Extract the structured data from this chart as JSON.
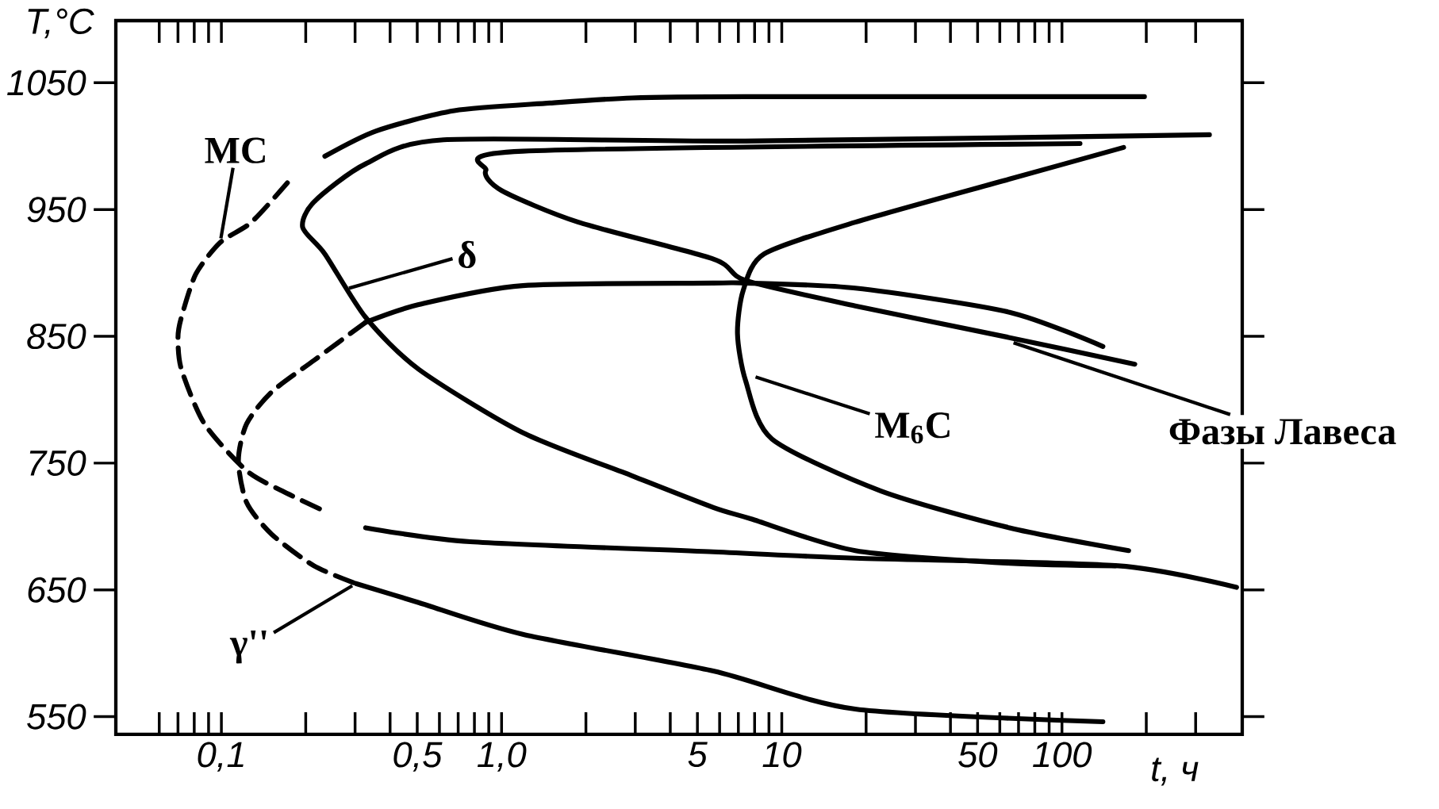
{
  "chart_data": {
    "type": "line",
    "log": "x",
    "xlabel": "t, ч",
    "ylabel": "T,°C",
    "xlim": [
      0.042,
      440
    ],
    "ylim": [
      536,
      1099
    ],
    "xticks": [
      {
        "value": 0.06,
        "label": null
      },
      {
        "value": 0.07,
        "label": null
      },
      {
        "value": 0.08,
        "label": null
      },
      {
        "value": 0.09,
        "label": null
      },
      {
        "value": 0.1,
        "label": "0,1"
      },
      {
        "value": 0.2,
        "label": null
      },
      {
        "value": 0.3,
        "label": null
      },
      {
        "value": 0.4,
        "label": null
      },
      {
        "value": 0.5,
        "label": "0,5"
      },
      {
        "value": 0.6,
        "label": null
      },
      {
        "value": 0.7,
        "label": null
      },
      {
        "value": 0.8,
        "label": null
      },
      {
        "value": 0.9,
        "label": null
      },
      {
        "value": 1.0,
        "label": "1,0"
      },
      {
        "value": 2,
        "label": null
      },
      {
        "value": 3,
        "label": null
      },
      {
        "value": 4,
        "label": null
      },
      5,
      {
        "value": 6,
        "label": null
      },
      {
        "value": 7,
        "label": null
      },
      {
        "value": 8,
        "label": null
      },
      {
        "value": 9,
        "label": null
      },
      10,
      {
        "value": 20,
        "label": null
      },
      {
        "value": 30,
        "label": null
      },
      {
        "value": 40,
        "label": null
      },
      50,
      {
        "value": 60,
        "label": null
      },
      {
        "value": 70,
        "label": null
      },
      {
        "value": 80,
        "label": null
      },
      {
        "value": 90,
        "label": null
      },
      100,
      {
        "value": 200,
        "label": null
      },
      {
        "value": 300,
        "label": null
      }
    ],
    "yticks": [
      550,
      650,
      750,
      850,
      950,
      1050
    ],
    "marker": "none",
    "series": [
      {
        "color": "#000000",
        "line_style": "solid",
        "x": [
          0.234,
          0.357,
          0.679,
          1.49,
          2.92,
          7.4,
          197
        ],
        "values": [
          992,
          1012,
          1028,
          1034,
          1038,
          1039,
          1039
        ]
      },
      {
        "color": "#000000",
        "line_style": "dashed",
        "x": [
          0.172,
          0.128,
          0.099,
          0.081,
          0.072,
          0.07,
          0.072,
          0.087,
          0.123,
          0.165,
          0.234
        ],
        "values": [
          971,
          940,
          924,
          899,
          865,
          849,
          824,
          781,
          744,
          728,
          712
        ]
      },
      {
        "color": "#000000",
        "line_style": "solid",
        "x": [
          0.327,
          0.773,
          5.7,
          18.3,
          159,
          420
        ],
        "values": [
          699,
          688,
          680,
          675,
          669,
          652
        ]
      },
      {
        "color": "#000000",
        "line_style": "solid",
        "x": [
          336,
          7.4,
          0.621,
          0.327,
          0.214,
          0.195,
          0.234,
          0.327,
          0.506,
          1.19,
          2.92,
          5.7,
          7.78,
          18.3,
          65,
          155
        ],
        "values": [
          1009,
          1004,
          1005,
          986,
          956,
          936,
          915,
          865,
          824,
          774,
          740,
          715,
          706,
          681,
          671,
          669
        ]
      },
      {
        "color": "#000000",
        "line_style": "solid",
        "x": [
          116,
          1.19,
          0.879,
          1.0,
          1.88,
          5.7,
          7.43,
          18.3,
          65,
          182
        ],
        "values": [
          1002,
          996,
          981,
          965,
          940,
          911,
          894,
          874,
          849,
          828
        ]
      },
      {
        "color": "#000000",
        "line_style": "solid",
        "x": [
          166,
          65,
          18.3,
          8.65,
          7.28,
          6.95,
          7.43,
          9.23,
          22.6,
          65,
          173
        ],
        "values": [
          999,
          974,
          940,
          915,
          886,
          852,
          815,
          769,
          728,
          699,
          681
        ]
      },
      {
        "color": "#000000",
        "line_style": "solid",
        "x": [
          140,
          65,
          18.3,
          7.43,
          5.7,
          1.19,
          0.506,
          0.327
        ],
        "values": [
          842,
          869,
          888,
          892,
          892,
          890,
          875,
          861
        ]
      },
      {
        "color": "#000000",
        "line_style": "dashed",
        "x": [
          0.327,
          0.214,
          0.151,
          0.123,
          0.115,
          0.123,
          0.151,
          0.214,
          0.302
        ],
        "values": [
          861,
          831,
          806,
          781,
          752,
          719,
          694,
          669,
          655
        ]
      },
      {
        "color": "#000000",
        "line_style": "solid",
        "x": [
          0.302,
          0.506,
          1.19,
          5.7,
          18.3,
          140
        ],
        "values": [
          655,
          640,
          615,
          586,
          556,
          546
        ]
      }
    ],
    "annotations": [
      {
        "text": "MC",
        "x": 0.099,
        "y": 924
      },
      {
        "text": "δ",
        "x": 0.276,
        "y": 887
      },
      {
        "text": "M$_{6}$C",
        "x": 7.8,
        "y": 819
      },
      {
        "text": "Фазы Лавеса",
        "x": 65,
        "y": 846
      },
      {
        "text": "γ''",
        "x": 0.302,
        "y": 655
      }
    ]
  }
}
